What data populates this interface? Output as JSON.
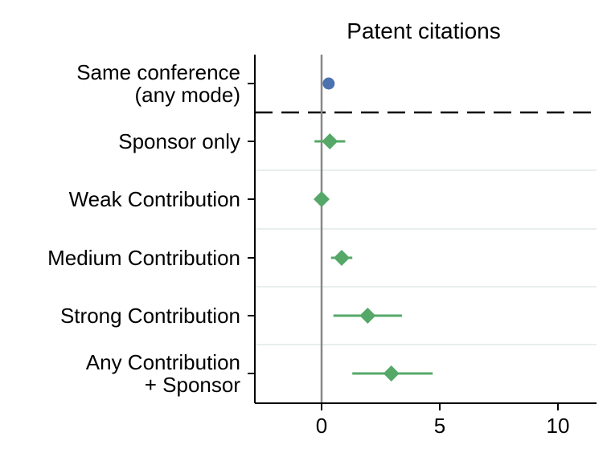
{
  "chart_data": {
    "type": "scatter",
    "title": "Patent citations",
    "xlabel": "",
    "ylabel": "",
    "xlim": [
      -2.8,
      11.5
    ],
    "x_ticks": [
      0,
      5,
      10
    ],
    "x_tick_labels": [
      "0",
      "5",
      "10"
    ],
    "reference_line_x": 0,
    "dashed_separator_after_row": 0,
    "colors": {
      "top": "#4c72b0",
      "rest": "#55a868",
      "zero_line": "#888888",
      "separator": "#000000",
      "row_grid": "#e8efee"
    },
    "rows": [
      {
        "label_lines": [
          "Same conference",
          "(any mode)"
        ],
        "estimate": 0.3,
        "ci_low": null,
        "ci_high": null,
        "marker": "circle",
        "color": "#4c72b0"
      },
      {
        "label_lines": [
          "Sponsor only"
        ],
        "estimate": 0.35,
        "ci_low": -0.3,
        "ci_high": 1.0,
        "marker": "diamond",
        "color": "#55a868"
      },
      {
        "label_lines": [
          "Weak Contribution"
        ],
        "estimate": 0.0,
        "ci_low": null,
        "ci_high": null,
        "marker": "diamond",
        "color": "#55a868"
      },
      {
        "label_lines": [
          "Medium Contribution"
        ],
        "estimate": 0.85,
        "ci_low": 0.4,
        "ci_high": 1.3,
        "marker": "diamond",
        "color": "#55a868"
      },
      {
        "label_lines": [
          "Strong Contribution"
        ],
        "estimate": 1.95,
        "ci_low": 0.5,
        "ci_high": 3.4,
        "marker": "diamond",
        "color": "#55a868"
      },
      {
        "label_lines": [
          "Any Contribution",
          "+ Sponsor"
        ],
        "estimate": 2.95,
        "ci_low": 1.3,
        "ci_high": 4.7,
        "marker": "diamond",
        "color": "#55a868"
      }
    ]
  }
}
